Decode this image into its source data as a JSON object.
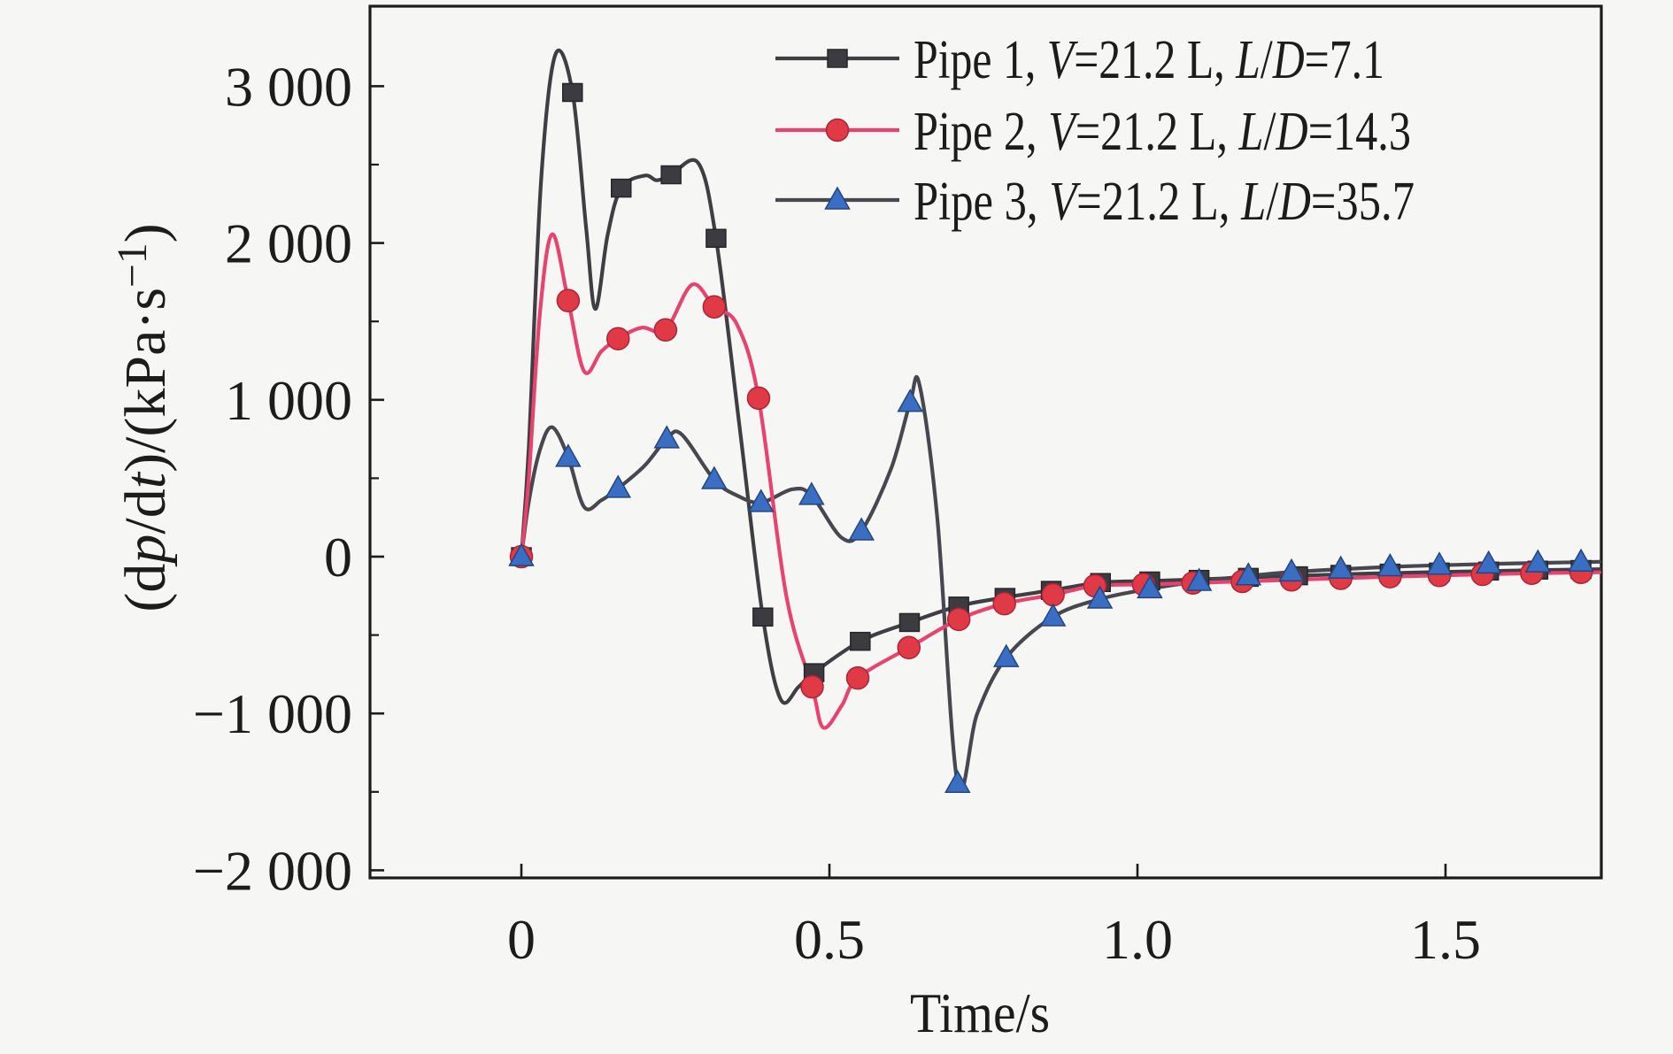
{
  "chart_data": {
    "type": "line",
    "title": "",
    "xlabel": "Time/s",
    "ylabel": "(dp/dt)/(kPa·s⁻¹)",
    "ylabel_segments": [
      {
        "t": "(d"
      },
      {
        "t": "p",
        "i": true
      },
      {
        "t": "/d"
      },
      {
        "t": "t",
        "i": true
      },
      {
        "t": ")/(kPa·s"
      },
      {
        "t": "−1",
        "sup": true
      },
      {
        "t": ")"
      }
    ],
    "xlim": [
      -0.25,
      1.75
    ],
    "ylim": [
      -2050,
      3515
    ],
    "grid": false,
    "legend_position": "top-right-inside",
    "x_ticks": {
      "values": [
        0,
        0.5,
        1.0,
        1.5
      ],
      "labels": [
        "0",
        "0.5",
        "1.0",
        "1.5"
      ]
    },
    "y_ticks": {
      "values": [
        3000,
        2000,
        1000,
        0,
        -1000,
        -2000
      ],
      "labels": [
        "3 000",
        "2 000",
        "1 000",
        "0",
        "−1 000",
        "−2 000"
      ],
      "minor": [
        2500,
        1500,
        500,
        -500,
        -1500
      ]
    },
    "colors": {
      "background": "#f6f6f5",
      "frame": "#1c1c1c",
      "pipe1_line": "#3f3f43",
      "pipe1_marker": "#3c3c40",
      "pipe1_marker_edge": "#26262a",
      "pipe2_line": "#e8436e",
      "pipe2_marker": "#e03a47",
      "pipe2_marker_edge": "#aa2638",
      "pipe3_line": "#47474f",
      "pipe3_marker": "#3a6ec2",
      "pipe3_marker_edge": "#25457e"
    },
    "series": [
      {
        "name": "pipe1",
        "label": "Pipe 1, V=21.2 L, L/D=7.1",
        "label_segments": [
          {
            "t": "Pipe 1, "
          },
          {
            "t": "V",
            "i": true
          },
          {
            "t": "=21.2 L, "
          },
          {
            "t": "L",
            "i": true
          },
          {
            "t": "/"
          },
          {
            "t": "D",
            "i": true
          },
          {
            "t": "=7.1"
          }
        ],
        "marker": "square",
        "markers": [
          [
            0,
            0
          ],
          [
            0.083,
            2960
          ],
          [
            0.162,
            2350
          ],
          [
            0.243,
            2435
          ],
          [
            0.316,
            2030
          ],
          [
            0.392,
            -385
          ],
          [
            0.475,
            -740
          ],
          [
            0.55,
            -540
          ],
          [
            0.63,
            -420
          ],
          [
            0.71,
            -315
          ],
          [
            0.785,
            -260
          ],
          [
            0.86,
            -215
          ],
          [
            0.94,
            -165
          ],
          [
            1.02,
            -155
          ],
          [
            1.1,
            -145
          ],
          [
            1.18,
            -132
          ],
          [
            1.26,
            -122
          ],
          [
            1.33,
            -113
          ],
          [
            1.41,
            -105
          ],
          [
            1.49,
            -98
          ],
          [
            1.57,
            -92
          ],
          [
            1.65,
            -86
          ],
          [
            1.72,
            -82
          ]
        ],
        "line": [
          [
            0,
            0
          ],
          [
            0.012,
            700
          ],
          [
            0.032,
            2400
          ],
          [
            0.055,
            3200
          ],
          [
            0.083,
            2960
          ],
          [
            0.105,
            2100
          ],
          [
            0.12,
            1580
          ],
          [
            0.14,
            2050
          ],
          [
            0.162,
            2350
          ],
          [
            0.2,
            2430
          ],
          [
            0.22,
            2400
          ],
          [
            0.243,
            2435
          ],
          [
            0.287,
            2510
          ],
          [
            0.316,
            2030
          ],
          [
            0.355,
            800
          ],
          [
            0.392,
            -385
          ],
          [
            0.421,
            -910
          ],
          [
            0.45,
            -830
          ],
          [
            0.475,
            -740
          ],
          [
            0.55,
            -540
          ],
          [
            0.63,
            -420
          ],
          [
            0.71,
            -315
          ],
          [
            0.785,
            -260
          ],
          [
            0.86,
            -215
          ],
          [
            0.94,
            -165
          ],
          [
            1.02,
            -155
          ],
          [
            1.1,
            -145
          ],
          [
            1.18,
            -132
          ],
          [
            1.26,
            -122
          ],
          [
            1.33,
            -113
          ],
          [
            1.41,
            -105
          ],
          [
            1.49,
            -98
          ],
          [
            1.57,
            -92
          ],
          [
            1.65,
            -86
          ],
          [
            1.75,
            -80
          ]
        ]
      },
      {
        "name": "pipe2",
        "label": "Pipe 2, V=21.2 L, L/D=14.3",
        "label_segments": [
          {
            "t": "Pipe 2, "
          },
          {
            "t": "V",
            "i": true
          },
          {
            "t": "=21.2 L, "
          },
          {
            "t": "L",
            "i": true
          },
          {
            "t": "/"
          },
          {
            "t": "D",
            "i": true
          },
          {
            "t": "=14.3"
          }
        ],
        "marker": "circle",
        "markers": [
          [
            0,
            0
          ],
          [
            0.076,
            1633
          ],
          [
            0.157,
            1390
          ],
          [
            0.234,
            1446
          ],
          [
            0.313,
            1593
          ],
          [
            0.385,
            1011
          ],
          [
            0.472,
            -830
          ],
          [
            0.546,
            -774
          ],
          [
            0.629,
            -580
          ],
          [
            0.71,
            -400
          ],
          [
            0.784,
            -300
          ],
          [
            0.863,
            -243
          ],
          [
            0.931,
            -186
          ],
          [
            1.01,
            -178
          ],
          [
            1.09,
            -168
          ],
          [
            1.17,
            -158
          ],
          [
            1.25,
            -148
          ],
          [
            1.33,
            -138
          ],
          [
            1.41,
            -128
          ],
          [
            1.49,
            -120
          ],
          [
            1.56,
            -113
          ],
          [
            1.64,
            -106
          ],
          [
            1.72,
            -100
          ]
        ],
        "line": [
          [
            0,
            0
          ],
          [
            0.012,
            500
          ],
          [
            0.03,
            1550
          ],
          [
            0.05,
            2056
          ],
          [
            0.076,
            1633
          ],
          [
            0.102,
            1181
          ],
          [
            0.13,
            1310
          ],
          [
            0.157,
            1390
          ],
          [
            0.195,
            1460
          ],
          [
            0.234,
            1446
          ],
          [
            0.277,
            1734
          ],
          [
            0.313,
            1593
          ],
          [
            0.35,
            1480
          ],
          [
            0.385,
            1011
          ],
          [
            0.43,
            -250
          ],
          [
            0.472,
            -830
          ],
          [
            0.49,
            -1090
          ],
          [
            0.52,
            -950
          ],
          [
            0.546,
            -774
          ],
          [
            0.629,
            -580
          ],
          [
            0.71,
            -400
          ],
          [
            0.784,
            -300
          ],
          [
            0.863,
            -243
          ],
          [
            0.931,
            -186
          ],
          [
            1.01,
            -178
          ],
          [
            1.09,
            -168
          ],
          [
            1.17,
            -158
          ],
          [
            1.25,
            -148
          ],
          [
            1.33,
            -138
          ],
          [
            1.41,
            -128
          ],
          [
            1.49,
            -120
          ],
          [
            1.56,
            -113
          ],
          [
            1.64,
            -106
          ],
          [
            1.75,
            -100
          ]
        ]
      },
      {
        "name": "pipe3",
        "label": "Pipe 3, V=21.2 L, L/D=35.7",
        "label_segments": [
          {
            "t": "Pipe 3, "
          },
          {
            "t": "V",
            "i": true
          },
          {
            "t": "=21.2 L, "
          },
          {
            "t": "L",
            "i": true
          },
          {
            "t": "/"
          },
          {
            "t": "D",
            "i": true
          },
          {
            "t": "=35.7"
          }
        ],
        "marker": "triangle",
        "markers": [
          [
            0,
            0
          ],
          [
            0.076,
            633
          ],
          [
            0.157,
            435
          ],
          [
            0.236,
            751
          ],
          [
            0.313,
            491
          ],
          [
            0.389,
            345
          ],
          [
            0.471,
            390
          ],
          [
            0.552,
            164
          ],
          [
            0.631,
            983
          ],
          [
            0.708,
            -1446
          ],
          [
            0.787,
            -644
          ],
          [
            0.863,
            -384
          ],
          [
            0.939,
            -271
          ],
          [
            1.02,
            -205
          ],
          [
            1.1,
            -158
          ],
          [
            1.18,
            -123
          ],
          [
            1.25,
            -98
          ],
          [
            1.33,
            -80
          ],
          [
            1.41,
            -65
          ],
          [
            1.49,
            -55
          ],
          [
            1.57,
            -47
          ],
          [
            1.65,
            -40
          ],
          [
            1.72,
            -35
          ]
        ],
        "line": [
          [
            0,
            0
          ],
          [
            0.012,
            350
          ],
          [
            0.03,
            680
          ],
          [
            0.05,
            825
          ],
          [
            0.076,
            633
          ],
          [
            0.102,
            316
          ],
          [
            0.13,
            360
          ],
          [
            0.157,
            435
          ],
          [
            0.2,
            580
          ],
          [
            0.236,
            751
          ],
          [
            0.26,
            780
          ],
          [
            0.313,
            491
          ],
          [
            0.35,
            390
          ],
          [
            0.389,
            345
          ],
          [
            0.44,
            430
          ],
          [
            0.471,
            390
          ],
          [
            0.52,
            120
          ],
          [
            0.552,
            164
          ],
          [
            0.6,
            560
          ],
          [
            0.631,
            983
          ],
          [
            0.646,
            1100
          ],
          [
            0.675,
            250
          ],
          [
            0.708,
            -1446
          ],
          [
            0.74,
            -1000
          ],
          [
            0.787,
            -644
          ],
          [
            0.863,
            -384
          ],
          [
            0.939,
            -271
          ],
          [
            1.02,
            -205
          ],
          [
            1.1,
            -158
          ],
          [
            1.18,
            -123
          ],
          [
            1.25,
            -98
          ],
          [
            1.33,
            -80
          ],
          [
            1.41,
            -65
          ],
          [
            1.49,
            -55
          ],
          [
            1.57,
            -47
          ],
          [
            1.65,
            -40
          ],
          [
            1.75,
            -33
          ]
        ]
      }
    ]
  }
}
